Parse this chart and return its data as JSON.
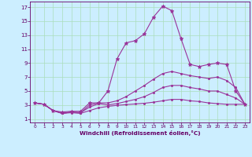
{
  "background_color": "#cceeff",
  "grid_color": "#aaddcc",
  "line_color": "#993399",
  "xlabel": "Windchill (Refroidissement éolien,°C)",
  "xlabel_color": "#660066",
  "tick_color": "#660066",
  "xlim": [
    -0.5,
    23.5
  ],
  "ylim": [
    0.5,
    17.8
  ],
  "xticks": [
    0,
    1,
    2,
    3,
    4,
    5,
    6,
    7,
    8,
    9,
    10,
    11,
    12,
    13,
    14,
    15,
    16,
    17,
    18,
    19,
    20,
    21,
    22,
    23
  ],
  "yticks": [
    1,
    3,
    5,
    7,
    9,
    11,
    13,
    15,
    17
  ],
  "series": [
    {
      "x": [
        0,
        1,
        2,
        3,
        4,
        5,
        6,
        7,
        8,
        9,
        10,
        11,
        12,
        13,
        14,
        15,
        16,
        17,
        18,
        19,
        20,
        21,
        22,
        23
      ],
      "y": [
        3.3,
        3.1,
        2.2,
        2.0,
        2.1,
        2.1,
        3.3,
        3.3,
        5.0,
        9.6,
        11.9,
        12.2,
        13.2,
        15.6,
        17.15,
        16.5,
        12.5,
        8.8,
        8.5,
        8.8,
        9.0,
        8.8,
        5.0,
        3.1
      ],
      "marker": "*",
      "markersize": 3.5
    },
    {
      "x": [
        0,
        1,
        2,
        3,
        4,
        5,
        6,
        7,
        8,
        9,
        10,
        11,
        12,
        13,
        14,
        15,
        16,
        17,
        18,
        19,
        20,
        21,
        22,
        23
      ],
      "y": [
        3.3,
        3.1,
        2.2,
        1.8,
        2.0,
        1.9,
        3.0,
        3.3,
        3.3,
        3.6,
        4.2,
        5.0,
        5.8,
        6.7,
        7.5,
        7.8,
        7.5,
        7.2,
        7.0,
        6.8,
        7.0,
        6.5,
        5.5,
        3.1
      ],
      "marker": "o",
      "markersize": 1.5
    },
    {
      "x": [
        0,
        1,
        2,
        3,
        4,
        5,
        6,
        7,
        8,
        9,
        10,
        11,
        12,
        13,
        14,
        15,
        16,
        17,
        18,
        19,
        20,
        21,
        22,
        23
      ],
      "y": [
        3.3,
        3.1,
        2.2,
        1.8,
        2.0,
        1.9,
        2.7,
        3.2,
        3.0,
        3.2,
        3.5,
        3.8,
        4.2,
        4.8,
        5.5,
        5.8,
        5.8,
        5.5,
        5.3,
        5.0,
        5.0,
        4.5,
        4.0,
        3.1
      ],
      "marker": "o",
      "markersize": 1.5
    },
    {
      "x": [
        0,
        1,
        2,
        3,
        4,
        5,
        6,
        7,
        8,
        9,
        10,
        11,
        12,
        13,
        14,
        15,
        16,
        17,
        18,
        19,
        20,
        21,
        22,
        23
      ],
      "y": [
        3.3,
        3.1,
        2.2,
        1.8,
        1.9,
        1.8,
        2.2,
        2.6,
        2.8,
        2.95,
        3.05,
        3.15,
        3.25,
        3.4,
        3.6,
        3.8,
        3.8,
        3.6,
        3.5,
        3.3,
        3.2,
        3.1,
        3.1,
        3.1
      ],
      "marker": "o",
      "markersize": 1.5
    }
  ]
}
